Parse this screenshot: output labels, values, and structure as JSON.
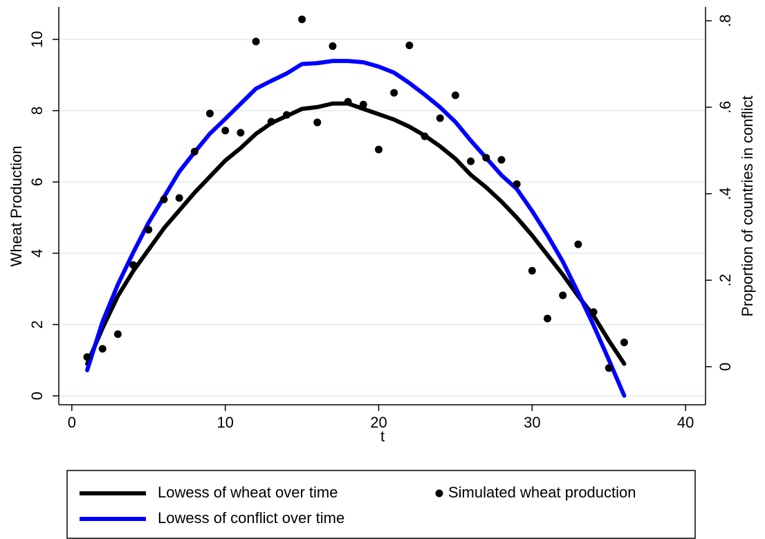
{
  "chart_data": {
    "type": "line",
    "xlabel": "t",
    "ylabel": "Wheat Production",
    "y2label": "Proportion of countries in conflict",
    "x": [
      1,
      2,
      3,
      4,
      5,
      6,
      7,
      8,
      9,
      10,
      11,
      12,
      13,
      14,
      15,
      16,
      17,
      18,
      19,
      20,
      21,
      22,
      23,
      24,
      25,
      26,
      27,
      28,
      29,
      30,
      31,
      32,
      33,
      34,
      35,
      36
    ],
    "xlim": [
      -0.85,
      41.3
    ],
    "xticks": [
      0,
      10,
      20,
      30,
      40
    ],
    "ylim": [
      -0.25,
      10.91
    ],
    "yticks": [
      0,
      2,
      4,
      6,
      8,
      10
    ],
    "y2lim": [
      -0.088,
      0.832
    ],
    "y2ticks": [
      0,
      {
        "value": 0.2,
        "label": ".2"
      },
      {
        "value": 0.4,
        "label": ".4"
      },
      {
        "value": 0.6,
        "label": ".6"
      },
      {
        "value": 0.8,
        "label": ".8"
      }
    ],
    "grid": true,
    "legend": "bottom",
    "series": [
      {
        "name": "Lowess of wheat over time",
        "type": "line",
        "color": "#000000",
        "values": [
          0.9,
          1.9,
          2.8,
          3.5,
          4.1,
          4.7,
          5.2,
          5.7,
          6.15,
          6.6,
          6.95,
          7.35,
          7.65,
          7.85,
          8.05,
          8.1,
          8.2,
          8.2,
          8.05,
          7.9,
          7.75,
          7.55,
          7.3,
          7.0,
          6.65,
          6.2,
          5.85,
          5.45,
          5.0,
          4.5,
          3.95,
          3.4,
          2.8,
          2.25,
          1.55,
          0.9
        ]
      },
      {
        "name": "Simulated wheat production",
        "type": "scatter",
        "color": "#000000",
        "values": [
          1.09,
          1.32,
          1.73,
          3.67,
          4.66,
          5.51,
          5.55,
          6.85,
          7.92,
          7.44,
          7.38,
          9.94,
          7.69,
          7.88,
          10.56,
          7.67,
          9.81,
          8.25,
          8.17,
          6.91,
          8.5,
          9.83,
          7.28,
          7.79,
          8.43,
          6.58,
          6.68,
          6.62,
          5.94,
          3.51,
          2.17,
          2.82,
          4.25,
          2.35,
          0.78,
          1.5
        ]
      },
      {
        "name": "Lowess of conflict over time",
        "type": "line",
        "axis": "y2",
        "color": "#0000ff",
        "values": [
          -0.008,
          0.104,
          0.19,
          0.264,
          0.333,
          0.392,
          0.451,
          0.496,
          0.539,
          0.573,
          0.608,
          0.643,
          0.661,
          0.678,
          0.7,
          0.702,
          0.707,
          0.707,
          0.704,
          0.694,
          0.68,
          0.656,
          0.629,
          0.6,
          0.566,
          0.523,
          0.483,
          0.443,
          0.411,
          0.36,
          0.304,
          0.243,
          0.171,
          0.096,
          0.016,
          -0.067
        ]
      }
    ]
  }
}
